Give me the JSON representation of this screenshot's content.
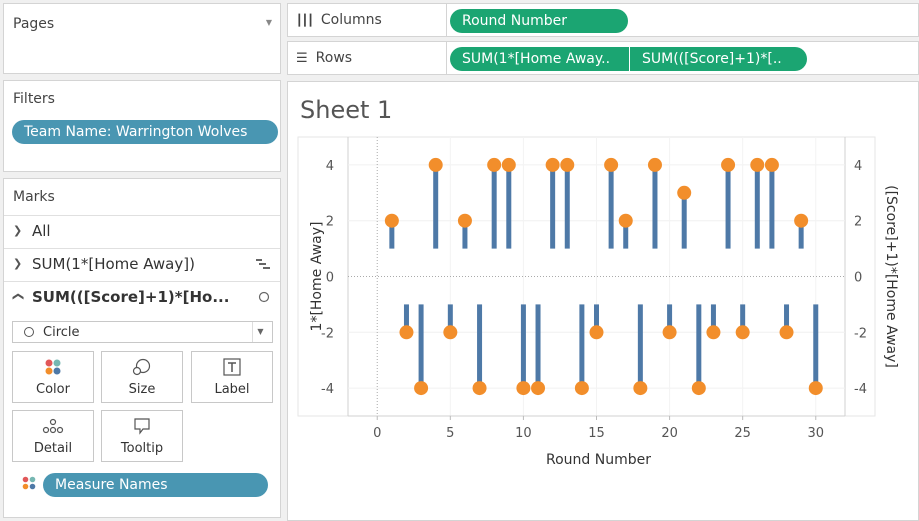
{
  "pages": {
    "title": "Pages"
  },
  "filters": {
    "title": "Filters",
    "pill": "Team Name: Warrington Wolves"
  },
  "marks": {
    "title": "Marks",
    "items": [
      "All",
      "SUM(1*[Home Away])",
      "SUM(([Score]+1)*[Ho..."
    ],
    "mark_type": "Circle",
    "cards": {
      "color": "Color",
      "size": "Size",
      "label": "Label",
      "detail": "Detail",
      "tooltip": "Tooltip"
    },
    "measure_names": "Measure Names"
  },
  "shelves": {
    "columns_label": "Columns",
    "rows_label": "Rows",
    "columns_pill": "Round Number",
    "rows_pill_1": "SUM(1*[Home Away..",
    "rows_pill_2": "SUM(([Score]+1)*[.."
  },
  "sheet": {
    "title": "Sheet 1"
  },
  "colors": {
    "bar": "#4e79a7",
    "circle": "#f28e2b",
    "green_pill": "#1ba572",
    "blue_pill": "#4996b2"
  },
  "chart_data": {
    "type": "bar",
    "title": "",
    "xlabel": "Round Number",
    "ylabel_left": "1*[Home Away]",
    "ylabel_right": "([Score]+1)*[Home Away]",
    "xlim": [
      -2,
      32
    ],
    "ylim": [
      -5,
      5
    ],
    "x_ticks": [
      0,
      5,
      10,
      15,
      20,
      25,
      30
    ],
    "y_ticks": [
      4,
      2,
      0,
      -2,
      -4
    ],
    "series": [
      {
        "name": "SUM(1*[Home Away])",
        "mark": "bar",
        "x": [
          1,
          2,
          3,
          4,
          5,
          6,
          7,
          8,
          9,
          10,
          11,
          12,
          13,
          14,
          15,
          16,
          17,
          18,
          19,
          20,
          21,
          22,
          23,
          24,
          25,
          26,
          27,
          28,
          29,
          30
        ],
        "values": [
          1,
          -1,
          -1,
          1,
          -1,
          1,
          -1,
          1,
          1,
          -1,
          -1,
          1,
          1,
          -1,
          -1,
          1,
          1,
          -1,
          1,
          -1,
          1,
          -1,
          -1,
          1,
          -1,
          1,
          1,
          -1,
          1,
          -1
        ]
      },
      {
        "name": "SUM(([Score]+1)*[Home Away])",
        "mark": "circle",
        "x": [
          1,
          2,
          3,
          4,
          5,
          6,
          7,
          8,
          9,
          10,
          11,
          12,
          13,
          14,
          15,
          16,
          17,
          18,
          19,
          20,
          21,
          22,
          23,
          24,
          25,
          26,
          27,
          28,
          29,
          30
        ],
        "values": [
          2,
          -2,
          -4,
          4,
          -2,
          2,
          -4,
          4,
          4,
          -4,
          -4,
          4,
          4,
          -4,
          -2,
          4,
          2,
          -4,
          4,
          -2,
          3,
          -4,
          -2,
          4,
          -2,
          4,
          4,
          -2,
          2,
          -4
        ]
      }
    ]
  }
}
